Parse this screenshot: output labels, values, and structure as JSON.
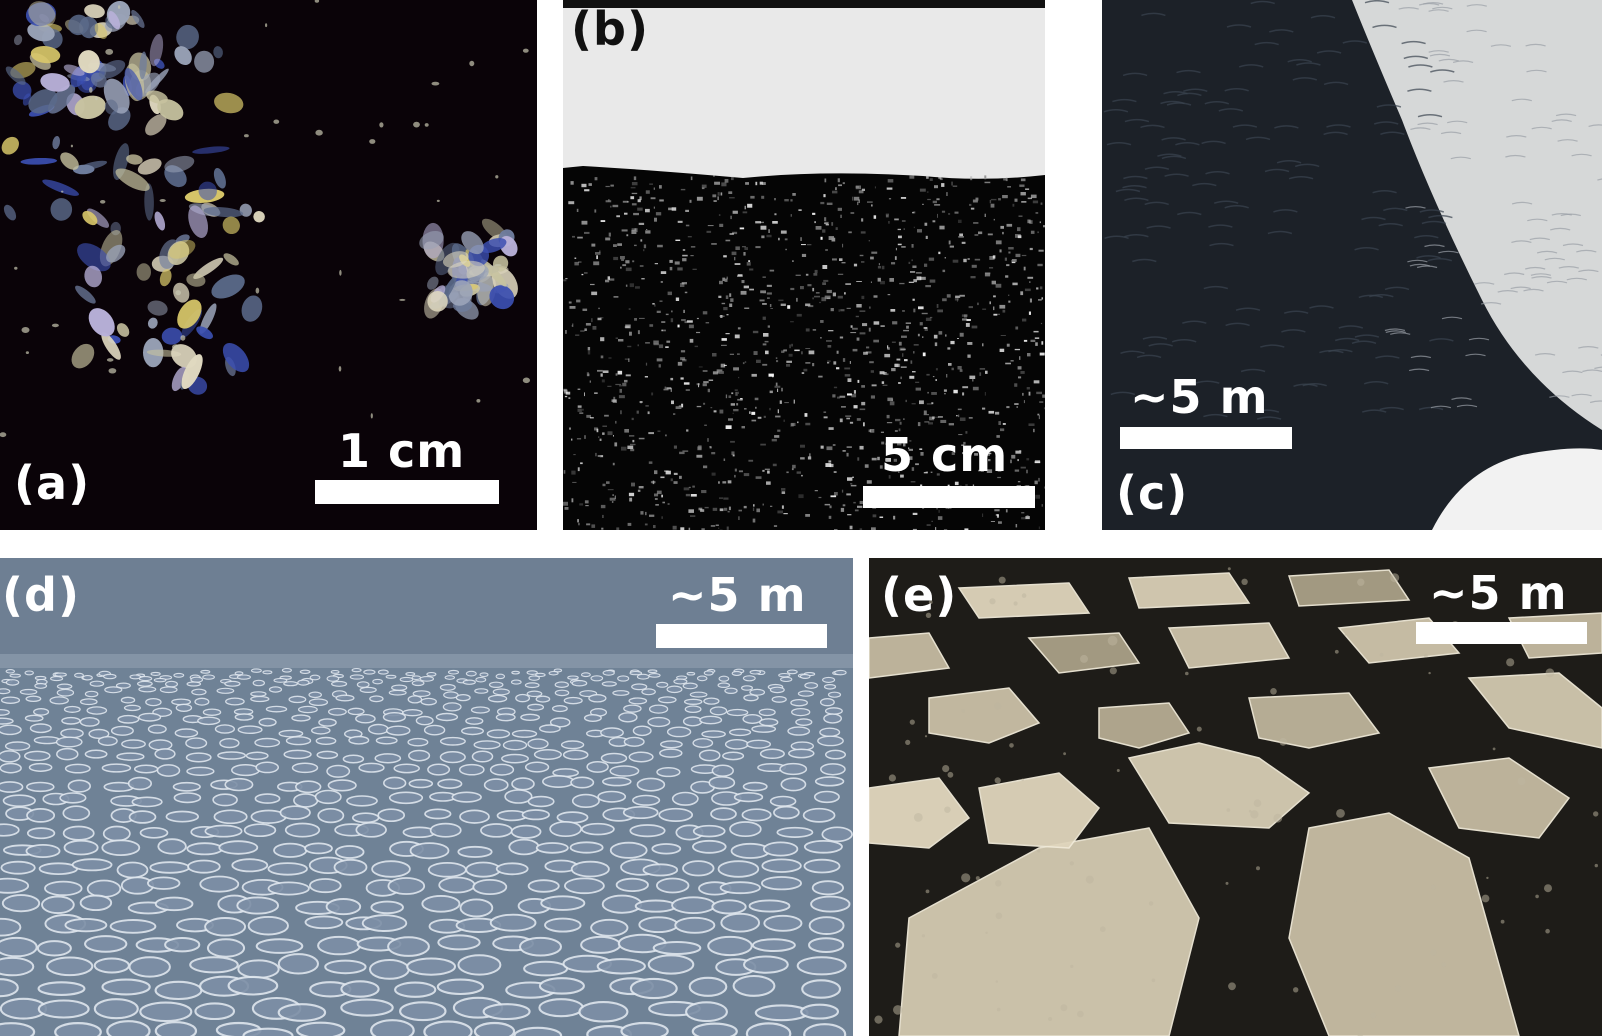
{
  "panels": [
    {
      "id": "a",
      "label": "(a)",
      "scale": "1 cm"
    },
    {
      "id": "b",
      "label": "(b)",
      "scale": "5 cm"
    },
    {
      "id": "c",
      "label": "(c)",
      "scale": "~5 m"
    },
    {
      "id": "d",
      "label": "(d)",
      "scale": "~5 m"
    },
    {
      "id": "e",
      "label": "(e)",
      "scale": "~5 m"
    }
  ],
  "colors": {
    "background": "#ffffff",
    "label": "#ffffff",
    "label_b": "#111111",
    "scale_bar": "#ffffff"
  }
}
